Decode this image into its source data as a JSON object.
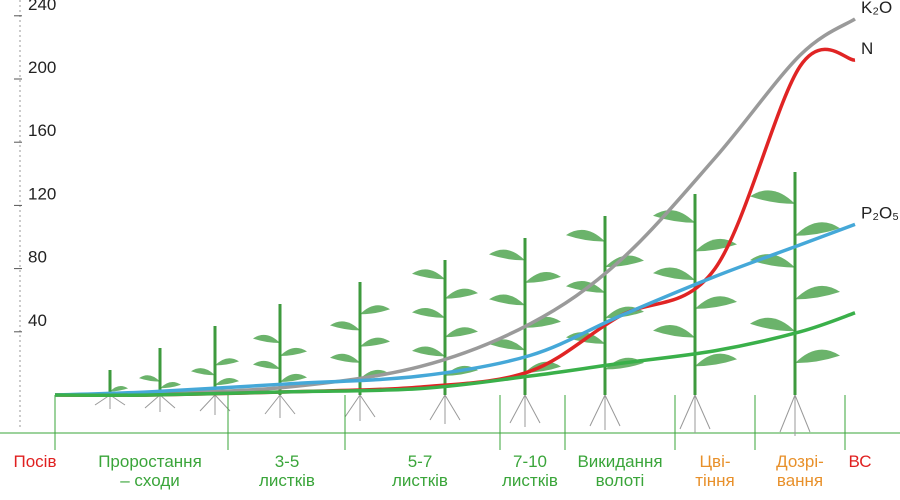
{
  "chart_data": {
    "type": "line",
    "categories": [
      "Посів",
      "Проростання\n– сходи",
      "3-5\nлистків",
      "5-7\nлистків",
      "7-10\nлистків",
      "Викидання\nволоті",
      "Цві-\nтіння",
      "Дозрі-\nвання",
      "ВС"
    ],
    "category_colors": [
      "#e02020",
      "#3aa53a",
      "#3aa53a",
      "#3aa53a",
      "#3aa53a",
      "#3aa53a",
      "#e8902a",
      "#e8902a",
      "#e02020"
    ],
    "series": [
      {
        "name": "K₂O",
        "color": "#9a9a9a",
        "values": [
          0,
          1,
          5,
          18,
          45,
          85,
          150,
          215,
          238
        ]
      },
      {
        "name": "N",
        "color": "#e02424",
        "values": [
          0,
          0,
          2,
          5,
          15,
          50,
          80,
          208,
          212
        ]
      },
      {
        "name": "P₂O₅",
        "color": "#45a8d8",
        "values": [
          0,
          2,
          7,
          12,
          25,
          50,
          75,
          95,
          108
        ]
      },
      {
        "color": "#3ab04a",
        "values": [
          0,
          0,
          2,
          4,
          12,
          20,
          28,
          40,
          52
        ]
      }
    ],
    "ylim": [
      0,
      250
    ],
    "yticks": [
      40,
      80,
      120,
      160,
      200,
      240
    ]
  }
}
